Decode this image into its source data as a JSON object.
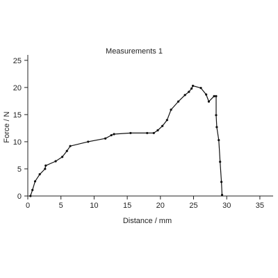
{
  "chart_data": {
    "type": "line",
    "title": "Measurements 1",
    "xlabel": "Distance / mm",
    "ylabel": "Force / N",
    "xlim": [
      0,
      37
    ],
    "ylim": [
      0,
      26
    ],
    "xticks": [
      0,
      5,
      10,
      15,
      20,
      25,
      30,
      35
    ],
    "yticks": [
      0,
      5,
      10,
      15,
      20,
      25
    ],
    "grid": false,
    "line_color": "#111111",
    "marker": "dot",
    "series": [
      {
        "x": [
          0.4,
          0.7,
          1.1,
          1.8,
          2.6,
          2.7,
          4.2,
          5.2,
          5.9,
          6.4,
          9.1,
          11.7,
          12.6,
          13.0,
          15.5,
          18.0,
          19.0,
          19.6,
          20.3,
          21.0,
          21.6,
          22.7,
          23.7,
          24.3,
          24.7,
          24.9,
          26.1,
          26.9,
          27.3,
          28.1,
          28.4,
          28.4,
          28.5,
          28.8,
          29.0,
          29.2,
          29.3
        ],
        "y": [
          0.0,
          1.1,
          2.7,
          4.0,
          5.0,
          5.6,
          6.4,
          7.2,
          8.3,
          9.2,
          10.0,
          10.6,
          11.2,
          11.4,
          11.6,
          11.6,
          11.6,
          12.1,
          12.9,
          14.0,
          15.9,
          17.4,
          18.6,
          19.2,
          19.8,
          20.3,
          19.9,
          18.7,
          17.4,
          18.4,
          18.4,
          14.9,
          12.7,
          10.3,
          6.3,
          2.6,
          0.2
        ]
      }
    ]
  }
}
